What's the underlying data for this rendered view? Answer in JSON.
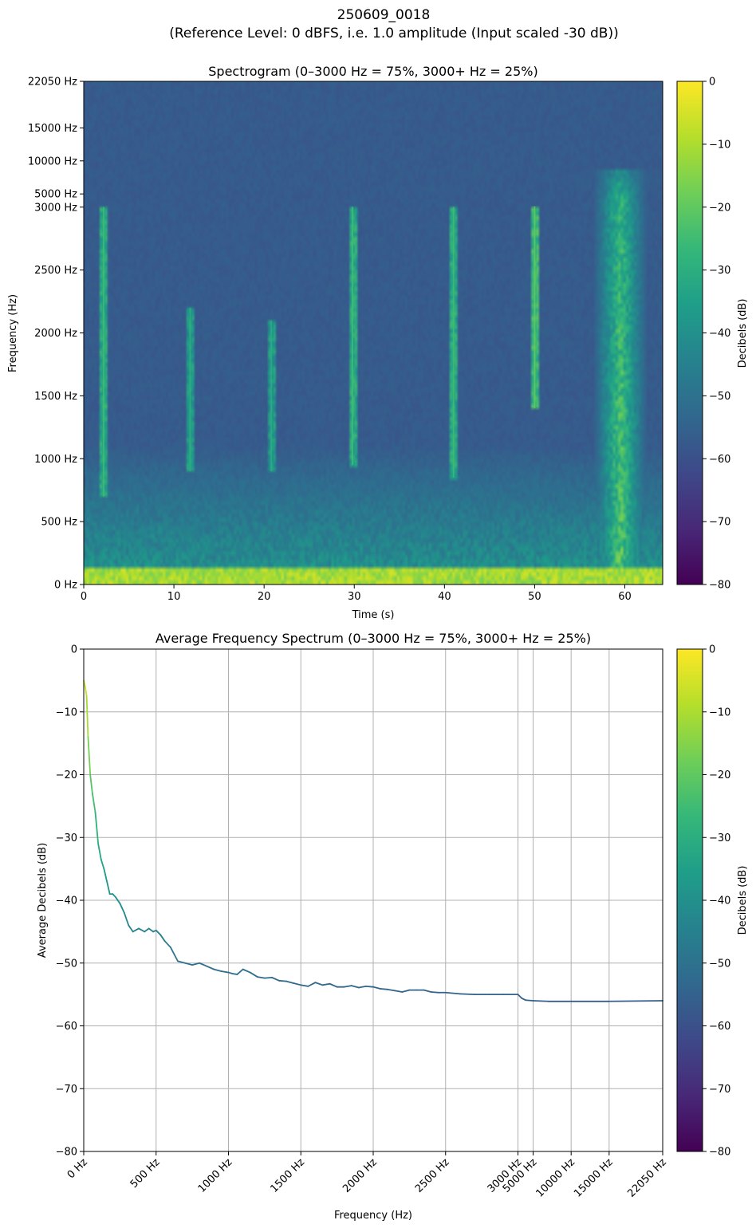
{
  "figure": {
    "title_line1": "250609_0018",
    "title_line2": "(Reference Level: 0 dBFS, i.e. 1.0 amplitude (Input scaled -30 dB))"
  },
  "colors": {
    "viridis": [
      "#440154",
      "#482878",
      "#3e4989",
      "#31688e",
      "#26828e",
      "#1f9e89",
      "#35b779",
      "#6ece58",
      "#b5de2b",
      "#fde725"
    ],
    "grid": "#b0b0b0",
    "axis": "#000000"
  },
  "chart_data": [
    {
      "type": "heatmap",
      "title": "Spectrogram (0–3000 Hz = 75%, 3000+ Hz = 25%)",
      "xlabel": "Time (s)",
      "ylabel": "Frequency (Hz)",
      "xlim": [
        0,
        64.2
      ],
      "x_ticks": [
        0,
        10,
        20,
        30,
        40,
        50,
        60
      ],
      "y_scale": "piecewise: 0–3000 Hz linear on lower 75%, 3000–22050 Hz on upper 25%",
      "y_ticks": [
        {
          "value": 0,
          "label": "0 Hz"
        },
        {
          "value": 500,
          "label": "500 Hz"
        },
        {
          "value": 1000,
          "label": "1000 Hz"
        },
        {
          "value": 1500,
          "label": "1500 Hz"
        },
        {
          "value": 2000,
          "label": "2000 Hz"
        },
        {
          "value": 2500,
          "label": "2500 Hz"
        },
        {
          "value": 3000,
          "label": "3000 Hz"
        },
        {
          "value": 5000,
          "label": "5000 Hz"
        },
        {
          "value": 10000,
          "label": "10000 Hz"
        },
        {
          "value": 15000,
          "label": "15000 Hz"
        },
        {
          "value": 22050,
          "label": "22050 Hz"
        }
      ],
      "background_db": -57,
      "low_band": {
        "freq_max": 120,
        "db": -5
      },
      "calls": [
        {
          "t": 2.2,
          "f_low": 700,
          "f_high": 3000,
          "db": -25
        },
        {
          "t": 11.8,
          "f_low": 900,
          "f_high": 2200,
          "db": -30
        },
        {
          "t": 20.8,
          "f_low": 900,
          "f_high": 2100,
          "db": -30
        },
        {
          "t": 29.8,
          "f_low": 950,
          "f_high": 3050,
          "db": -25
        },
        {
          "t": 41.0,
          "f_low": 850,
          "f_high": 3000,
          "db": -25
        },
        {
          "t": 50.0,
          "f_low": 1400,
          "f_high": 3100,
          "db": -20
        }
      ],
      "burst": {
        "t_start": 56.5,
        "t_end": 62.5,
        "t_peak": 59.5,
        "f_max": 9000,
        "db": -15
      },
      "colorbar": {
        "label": "Decibels (dB)",
        "range": [
          -80,
          0
        ],
        "ticks": [
          0,
          -10,
          -20,
          -30,
          -40,
          -50,
          -60,
          -70,
          -80
        ]
      }
    },
    {
      "type": "line",
      "title": "Average Frequency Spectrum (0–3000 Hz = 75%, 3000+ Hz = 25%)",
      "xlabel": "Frequency (Hz)",
      "ylabel": "Average Decibels (dB)",
      "ylim": [
        -80,
        0
      ],
      "y_ticks": [
        0,
        -10,
        -20,
        -30,
        -40,
        -50,
        -60,
        -70,
        -80
      ],
      "x_scale": "piecewise: 0–3000 Hz linear on left 75%, 3000–22050 Hz on right 25%",
      "x_ticks": [
        {
          "value": 0,
          "label": "0 Hz"
        },
        {
          "value": 500,
          "label": "500 Hz"
        },
        {
          "value": 1000,
          "label": "1000 Hz"
        },
        {
          "value": 1500,
          "label": "1500 Hz"
        },
        {
          "value": 2000,
          "label": "2000 Hz"
        },
        {
          "value": 2500,
          "label": "2500 Hz"
        },
        {
          "value": 3000,
          "label": "3000 Hz"
        },
        {
          "value": 5000,
          "label": "5000 Hz"
        },
        {
          "value": 10000,
          "label": "10000 Hz"
        },
        {
          "value": 15000,
          "label": "15000 Hz"
        },
        {
          "value": 22050,
          "label": "22050 Hz"
        }
      ],
      "grid": true,
      "color_by_value": "viridis",
      "x": [
        0,
        10,
        20,
        30,
        45,
        60,
        80,
        100,
        120,
        140,
        160,
        180,
        200,
        220,
        250,
        280,
        310,
        340,
        380,
        420,
        450,
        480,
        500,
        530,
        560,
        600,
        650,
        700,
        750,
        800,
        850,
        900,
        950,
        1000,
        1030,
        1060,
        1100,
        1150,
        1200,
        1250,
        1300,
        1350,
        1400,
        1450,
        1500,
        1550,
        1600,
        1650,
        1700,
        1750,
        1800,
        1850,
        1900,
        1950,
        2000,
        2050,
        2100,
        2150,
        2200,
        2250,
        2300,
        2350,
        2400,
        2450,
        2500,
        2600,
        2700,
        2800,
        2900,
        3000,
        3500,
        4000,
        5000,
        7000,
        10000,
        15000,
        22050
      ],
      "y": [
        -5,
        -6,
        -7.5,
        -14,
        -20,
        -23,
        -26,
        -31,
        -33.5,
        -35,
        -37,
        -39,
        -39,
        -39.5,
        -40.5,
        -42,
        -44,
        -45,
        -44.5,
        -45,
        -44.5,
        -45,
        -44.8,
        -45.5,
        -46.5,
        -47.5,
        -49.7,
        -50,
        -50.3,
        -50,
        -50.5,
        -51,
        -51.3,
        -51.5,
        -51.7,
        -51.8,
        -51,
        -51.5,
        -52.2,
        -52.4,
        -52.3,
        -52.8,
        -52.9,
        -53.2,
        -53.5,
        -53.7,
        -53.1,
        -53.5,
        -53.3,
        -53.8,
        -53.8,
        -53.6,
        -53.9,
        -53.7,
        -53.8,
        -54.1,
        -54.2,
        -54.4,
        -54.6,
        -54.3,
        -54.3,
        -54.3,
        -54.6,
        -54.7,
        -54.7,
        -54.9,
        -55.0,
        -55.0,
        -55.0,
        -55.0,
        -55.6,
        -55.9,
        -56.0,
        -56.1,
        -56.1,
        -56.1,
        -56.0
      ],
      "colorbar": {
        "label": "Decibels (dB)",
        "range": [
          -80,
          0
        ],
        "ticks": [
          0,
          -10,
          -20,
          -30,
          -40,
          -50,
          -60,
          -70,
          -80
        ]
      }
    }
  ]
}
